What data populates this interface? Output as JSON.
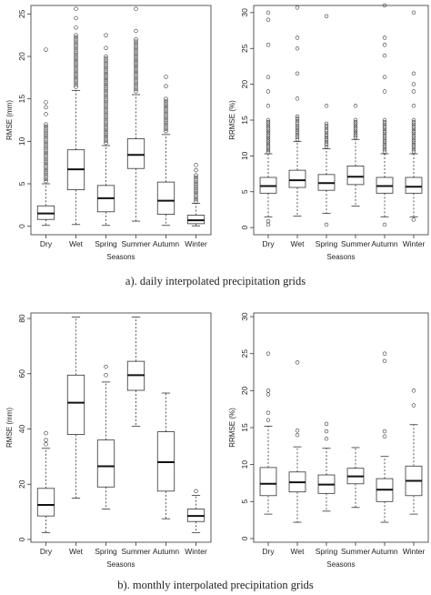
{
  "captions": {
    "a": "a). daily interpolated precipitation grids",
    "b": "b). monthly interpolated precipitation grids"
  },
  "chart_data": [
    {
      "id": "daily-rmse",
      "type": "boxplot",
      "categories": [
        "Dry",
        "Wet",
        "Spring",
        "Summer",
        "Autumn",
        "Winter"
      ],
      "xlabel": "Seasons",
      "ylabel": "RMSE (mm)",
      "ylim": [
        -1,
        26
      ],
      "yticks": [
        0,
        5,
        10,
        15,
        20,
        25
      ],
      "boxes": [
        {
          "whisker_low": 0.1,
          "q1": 0.8,
          "median": 1.5,
          "q3": 2.4,
          "whisker_high": 5.0,
          "outliers_from": 5.3,
          "outliers_to": 12,
          "extra_outliers": [
            13.2,
            14,
            14.6,
            20.8
          ]
        },
        {
          "whisker_low": 0.2,
          "q1": 4.3,
          "median": 6.7,
          "q3": 9.0,
          "whisker_high": 16.0,
          "outliers_from": 16.4,
          "outliers_to": 22.5,
          "extra_outliers": [
            23.4,
            24.5,
            25.6
          ]
        },
        {
          "whisker_low": 0.1,
          "q1": 1.7,
          "median": 3.3,
          "q3": 4.8,
          "whisker_high": 9.5,
          "outliers_from": 9.8,
          "outliers_to": 20,
          "extra_outliers": [
            21,
            22.5
          ]
        },
        {
          "whisker_low": 0.6,
          "q1": 6.8,
          "median": 8.4,
          "q3": 10.3,
          "whisker_high": 15.5,
          "outliers_from": 15.9,
          "outliers_to": 22,
          "extra_outliers": [
            23,
            25.6
          ]
        },
        {
          "whisker_low": 0.1,
          "q1": 1.4,
          "median": 3.0,
          "q3": 5.2,
          "whisker_high": 10.8,
          "outliers_from": 11.2,
          "outliers_to": 15,
          "extra_outliers": [
            16.5,
            17.6
          ]
        },
        {
          "whisker_low": 0.05,
          "q1": 0.3,
          "median": 0.7,
          "q3": 1.3,
          "whisker_high": 2.7,
          "outliers_from": 2.9,
          "outliers_to": 6,
          "extra_outliers": [
            6.6,
            7.2
          ]
        }
      ]
    },
    {
      "id": "daily-rrmse",
      "type": "boxplot",
      "categories": [
        "Dry",
        "Wet",
        "Spring",
        "Summer",
        "Autumn",
        "Winter"
      ],
      "xlabel": "Seasons",
      "ylabel": "RRMSE (%)",
      "ylim": [
        -1,
        31
      ],
      "yticks": [
        0,
        5,
        10,
        15,
        20,
        25,
        30
      ],
      "boxes": [
        {
          "whisker_low": 1.5,
          "q1": 4.8,
          "median": 5.8,
          "q3": 7.0,
          "whisker_high": 10.3,
          "outliers_from": 10.5,
          "outliers_to": 15,
          "extra_outliers": [
            0.4,
            0.9,
            17,
            19,
            21,
            25.5,
            29,
            30
          ]
        },
        {
          "whisker_low": 1.6,
          "q1": 5.6,
          "median": 6.6,
          "q3": 8.0,
          "whisker_high": 12.0,
          "outliers_from": 12.3,
          "outliers_to": 15.5,
          "extra_outliers": [
            18,
            21.5,
            25,
            26.5,
            30.7
          ]
        },
        {
          "whisker_low": 2.0,
          "q1": 5.2,
          "median": 6.2,
          "q3": 7.4,
          "whisker_high": 11.0,
          "outliers_from": 11.3,
          "outliers_to": 14.5,
          "extra_outliers": [
            0.4,
            17,
            29.5
          ]
        },
        {
          "whisker_low": 3.0,
          "q1": 6.0,
          "median": 7.1,
          "q3": 8.6,
          "whisker_high": 12.3,
          "outliers_from": 12.6,
          "outliers_to": 15,
          "extra_outliers": [
            17
          ]
        },
        {
          "whisker_low": 1.5,
          "q1": 4.8,
          "median": 5.8,
          "q3": 7.0,
          "whisker_high": 10.3,
          "outliers_from": 10.6,
          "outliers_to": 15,
          "extra_outliers": [
            0.4,
            19,
            21,
            24,
            25.5,
            26.5,
            31
          ]
        },
        {
          "whisker_low": 1.5,
          "q1": 4.8,
          "median": 5.7,
          "q3": 7.0,
          "whisker_high": 10.3,
          "outliers_from": 10.6,
          "outliers_to": 15,
          "extra_outliers": [
            1.1,
            17,
            19,
            20,
            21.5,
            30
          ]
        }
      ]
    },
    {
      "id": "monthly-rmse",
      "type": "boxplot",
      "categories": [
        "Dry",
        "Wet",
        "Spring",
        "Summer",
        "Autumn",
        "Winter"
      ],
      "xlabel": "Seasons",
      "ylabel": "RMSE (mm)",
      "ylim": [
        -1,
        82
      ],
      "yticks": [
        0,
        20,
        40,
        60,
        80
      ],
      "boxes": [
        {
          "whisker_low": 2.5,
          "q1": 8.5,
          "median": 12.5,
          "q3": 18.5,
          "whisker_high": 33,
          "outliers_from": 0,
          "outliers_to": 0,
          "extra_outliers": [
            34.5,
            36,
            38.5
          ]
        },
        {
          "whisker_low": 15,
          "q1": 38,
          "median": 49.5,
          "q3": 59.5,
          "whisker_high": 80.5,
          "outliers_from": 0,
          "outliers_to": 0,
          "extra_outliers": []
        },
        {
          "whisker_low": 11,
          "q1": 19,
          "median": 26.5,
          "q3": 36,
          "whisker_high": 57,
          "outliers_from": 0,
          "outliers_to": 0,
          "extra_outliers": [
            59.5,
            62.5
          ]
        },
        {
          "whisker_low": 41,
          "q1": 54,
          "median": 59.5,
          "q3": 64.5,
          "whisker_high": 80.5,
          "outliers_from": 0,
          "outliers_to": 0,
          "extra_outliers": []
        },
        {
          "whisker_low": 7.5,
          "q1": 17.5,
          "median": 28,
          "q3": 39,
          "whisker_high": 53,
          "outliers_from": 0,
          "outliers_to": 0,
          "extra_outliers": []
        },
        {
          "whisker_low": 2.5,
          "q1": 6.5,
          "median": 8.5,
          "q3": 11,
          "whisker_high": 16,
          "outliers_from": 0,
          "outliers_to": 0,
          "extra_outliers": [
            17.5
          ]
        }
      ]
    },
    {
      "id": "monthly-rrmse",
      "type": "boxplot",
      "categories": [
        "Dry",
        "Wet",
        "Spring",
        "Summer",
        "Autumn",
        "Winter"
      ],
      "xlabel": "Seasons",
      "ylabel": "RRMSE (%)",
      "ylim": [
        -0.5,
        30.5
      ],
      "yticks": [
        0,
        5,
        10,
        15,
        20,
        25,
        30
      ],
      "boxes": [
        {
          "whisker_low": 3.3,
          "q1": 5.8,
          "median": 7.4,
          "q3": 9.6,
          "whisker_high": 15.2,
          "outliers_from": 0,
          "outliers_to": 0,
          "extra_outliers": [
            16,
            17,
            19.5,
            20,
            25
          ]
        },
        {
          "whisker_low": 2.2,
          "q1": 6.3,
          "median": 7.6,
          "q3": 9.0,
          "whisker_high": 12.4,
          "outliers_from": 0,
          "outliers_to": 0,
          "extra_outliers": [
            14,
            14.6,
            23.8
          ]
        },
        {
          "whisker_low": 3.7,
          "q1": 6.1,
          "median": 7.3,
          "q3": 8.6,
          "whisker_high": 12.2,
          "outliers_from": 0,
          "outliers_to": 0,
          "extra_outliers": [
            13.5,
            14.5,
            15.5
          ]
        },
        {
          "whisker_low": 4.2,
          "q1": 7.4,
          "median": 8.4,
          "q3": 9.5,
          "whisker_high": 12.3,
          "outliers_from": 0,
          "outliers_to": 0,
          "extra_outliers": []
        },
        {
          "whisker_low": 2.2,
          "q1": 5.0,
          "median": 6.6,
          "q3": 8.1,
          "whisker_high": 11.1,
          "outliers_from": 0,
          "outliers_to": 0,
          "extra_outliers": [
            13.8,
            14.5,
            24,
            25
          ]
        },
        {
          "whisker_low": 3.3,
          "q1": 5.8,
          "median": 7.8,
          "q3": 9.8,
          "whisker_high": 15.4,
          "outliers_from": 0,
          "outliers_to": 0,
          "extra_outliers": [
            18,
            20
          ]
        }
      ]
    }
  ]
}
